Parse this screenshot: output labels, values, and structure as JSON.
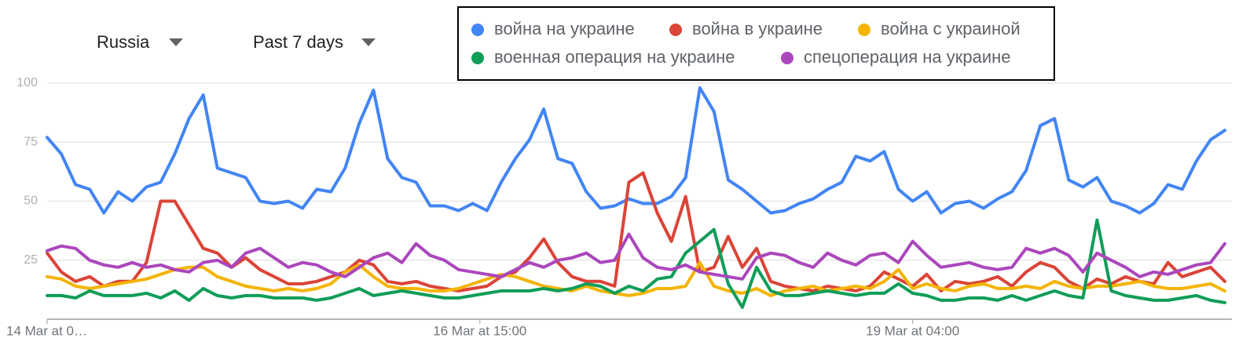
{
  "controls": {
    "region": "Russia",
    "period": "Past 7 days"
  },
  "chart_data": {
    "type": "line",
    "x": [
      0,
      2,
      4,
      6,
      8,
      10,
      12,
      14,
      16,
      18,
      20,
      22,
      24,
      26,
      28,
      30,
      32,
      34,
      36,
      38,
      40,
      42,
      44,
      46,
      48,
      50,
      52,
      54,
      56,
      58,
      60,
      62,
      64,
      66,
      68,
      70,
      72,
      74,
      76,
      78,
      80,
      82,
      84,
      86,
      88,
      90,
      92,
      94,
      96,
      98,
      100,
      102,
      104,
      106,
      108,
      110,
      112,
      114,
      116,
      118,
      120,
      122,
      124,
      126,
      128,
      130,
      132,
      134,
      136,
      138,
      140,
      142,
      144,
      146,
      148,
      150,
      152,
      154,
      156,
      158,
      160,
      162,
      164,
      166
    ],
    "xlim": [
      0,
      167
    ],
    "xticks": [
      {
        "value": 0,
        "label": "14 Mar at 0…"
      },
      {
        "value": 61,
        "label": "16 Mar at 15:00"
      },
      {
        "value": 122,
        "label": "19 Mar at 04:00"
      }
    ],
    "ylim": [
      0,
      100
    ],
    "yticks": [
      25,
      50,
      75,
      100
    ],
    "grid": true,
    "series": [
      {
        "name": "война на украине",
        "color": "#4285f4",
        "values": [
          77,
          70,
          57,
          55,
          45,
          54,
          50,
          56,
          58,
          70,
          85,
          95,
          64,
          62,
          60,
          50,
          49,
          50,
          47,
          55,
          54,
          64,
          83,
          97,
          68,
          60,
          58,
          48,
          48,
          46,
          49,
          46,
          58,
          68,
          76,
          89,
          68,
          66,
          54,
          47,
          48,
          51,
          49,
          49,
          52,
          60,
          98,
          88,
          59,
          55,
          50,
          45,
          46,
          49,
          51,
          55,
          58,
          69,
          67,
          71,
          55,
          50,
          54,
          45,
          49,
          50,
          47,
          51,
          54,
          63,
          82,
          85,
          59,
          56,
          60,
          50,
          48,
          45,
          49,
          57,
          55,
          67,
          76,
          80
        ]
      },
      {
        "name": "война в украине",
        "color": "#db4437",
        "values": [
          28,
          20,
          16,
          18,
          14,
          16,
          16,
          24,
          50,
          50,
          40,
          30,
          28,
          22,
          26,
          21,
          18,
          15,
          15,
          16,
          18,
          20,
          25,
          23,
          16,
          15,
          16,
          14,
          13,
          12,
          13,
          14,
          18,
          20,
          26,
          34,
          24,
          18,
          16,
          16,
          14,
          58,
          62,
          45,
          33,
          52,
          20,
          22,
          35,
          22,
          30,
          16,
          14,
          13,
          12,
          14,
          13,
          12,
          14,
          20,
          17,
          14,
          19,
          12,
          16,
          15,
          16,
          18,
          14,
          20,
          24,
          22,
          16,
          13,
          17,
          15,
          18,
          16,
          15,
          24,
          18,
          20,
          22,
          16
        ]
      },
      {
        "name": "война с украиной",
        "color": "#f4b400",
        "values": [
          18,
          17,
          14,
          13,
          14,
          15,
          16,
          17,
          19,
          21,
          22,
          22,
          18,
          16,
          14,
          13,
          12,
          13,
          12,
          13,
          15,
          20,
          23,
          18,
          14,
          13,
          13,
          12,
          12,
          13,
          15,
          17,
          19,
          18,
          16,
          14,
          13,
          12,
          14,
          12,
          11,
          10,
          11,
          13,
          13,
          14,
          24,
          14,
          12,
          11,
          13,
          10,
          12,
          13,
          14,
          12,
          13,
          14,
          13,
          16,
          21,
          13,
          15,
          13,
          12,
          14,
          15,
          13,
          13,
          14,
          13,
          16,
          14,
          13,
          14,
          14,
          15,
          16,
          14,
          13,
          13,
          14,
          15,
          12
        ]
      },
      {
        "name": "военная операция на украине",
        "color": "#0f9d58",
        "values": [
          10,
          10,
          9,
          12,
          10,
          10,
          10,
          11,
          9,
          12,
          8,
          13,
          10,
          9,
          10,
          10,
          9,
          9,
          9,
          8,
          9,
          11,
          13,
          10,
          11,
          12,
          11,
          10,
          9,
          9,
          10,
          11,
          12,
          12,
          12,
          13,
          12,
          13,
          15,
          14,
          11,
          14,
          12,
          17,
          18,
          28,
          33,
          38,
          15,
          5,
          22,
          12,
          10,
          10,
          11,
          12,
          11,
          10,
          11,
          11,
          15,
          11,
          10,
          8,
          8,
          9,
          9,
          8,
          10,
          8,
          10,
          12,
          10,
          9,
          42,
          12,
          10,
          9,
          8,
          8,
          9,
          10,
          8,
          7
        ]
      },
      {
        "name": "спецоперация на украине",
        "color": "#ab47bc",
        "values": [
          29,
          31,
          30,
          25,
          23,
          22,
          24,
          22,
          23,
          21,
          20,
          24,
          25,
          22,
          28,
          30,
          26,
          22,
          24,
          23,
          20,
          18,
          22,
          26,
          28,
          24,
          32,
          27,
          25,
          21,
          20,
          19,
          18,
          21,
          24,
          22,
          25,
          26,
          28,
          24,
          25,
          36,
          26,
          22,
          21,
          23,
          20,
          19,
          18,
          17,
          26,
          28,
          27,
          24,
          22,
          28,
          25,
          23,
          27,
          28,
          24,
          33,
          27,
          22,
          23,
          24,
          22,
          21,
          22,
          30,
          28,
          30,
          27,
          20,
          28,
          25,
          22,
          18,
          20,
          19,
          21,
          23,
          24,
          32
        ]
      }
    ]
  }
}
